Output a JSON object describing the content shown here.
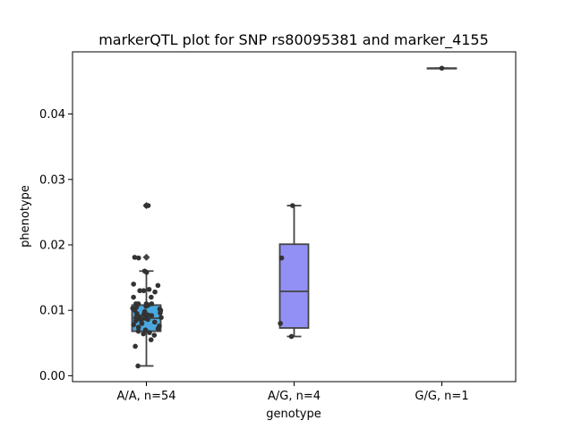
{
  "chart_data": {
    "type": "box",
    "title": "markerQTL plot for SNP rs80095381 and marker_4155",
    "xlabel": "genotype",
    "ylabel": "phenotype",
    "ylim": [
      -0.0009,
      0.0495
    ],
    "y_ticks": [
      "0.00",
      "0.01",
      "0.02",
      "0.03",
      "0.04"
    ],
    "y_tick_values": [
      0.0,
      0.01,
      0.02,
      0.03,
      0.04
    ],
    "categories": [
      "A/A, n=54",
      "A/G, n=4",
      "G/G, n=1"
    ],
    "colors": [
      "#4aa8e0",
      "#9290f5",
      "#7e70e0"
    ],
    "boxes": [
      {
        "category": "A/A, n=54",
        "q1": 0.0068,
        "median": 0.0088,
        "q3": 0.0108,
        "whisker_low": 0.0015,
        "whisker_high": 0.016,
        "outliers": [
          0.026,
          0.0181
        ]
      },
      {
        "category": "A/G, n=4",
        "q1": 0.0073,
        "median": 0.0129,
        "q3": 0.0201,
        "whisker_low": 0.006,
        "whisker_high": 0.026,
        "outliers": []
      },
      {
        "category": "G/G, n=1",
        "q1": 0.047,
        "median": 0.047,
        "q3": 0.047,
        "whisker_low": 0.047,
        "whisker_high": 0.047,
        "outliers": []
      }
    ],
    "points": [
      {
        "group": 0,
        "values": [
          0.026,
          0.026,
          0.0181,
          0.018,
          0.016,
          0.0158,
          0.014,
          0.0138,
          0.0132,
          0.013,
          0.013,
          0.0128,
          0.012,
          0.012,
          0.011,
          0.011,
          0.011,
          0.011,
          0.0108,
          0.0106,
          0.0105,
          0.0103,
          0.0102,
          0.01,
          0.01,
          0.0098,
          0.0096,
          0.0095,
          0.0094,
          0.0093,
          0.0092,
          0.009,
          0.009,
          0.0089,
          0.0088,
          0.0087,
          0.0086,
          0.0085,
          0.0084,
          0.0082,
          0.008,
          0.008,
          0.0078,
          0.0076,
          0.0074,
          0.0072,
          0.007,
          0.0068,
          0.0066,
          0.0064,
          0.0062,
          0.0055,
          0.0045,
          0.0015
        ]
      },
      {
        "group": 1,
        "values": [
          0.026,
          0.018,
          0.008,
          0.006
        ]
      },
      {
        "group": 2,
        "values": [
          0.047
        ]
      }
    ]
  }
}
